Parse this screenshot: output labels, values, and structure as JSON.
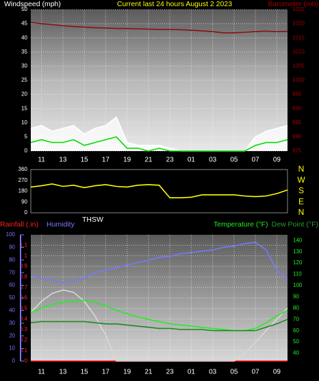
{
  "chart_data": [
    {
      "type": "line",
      "title": "Current last 24 hours August 2 2023",
      "ylabel": "Windspeed (mph)",
      "y2label": "Barometer (mb)",
      "xlim": [
        0,
        24
      ],
      "xticks": [
        {
          "value": 1,
          "label": "11"
        },
        {
          "value": 3,
          "label": "13"
        },
        {
          "value": 5,
          "label": "15"
        },
        {
          "value": 7,
          "label": "17"
        },
        {
          "value": 9,
          "label": "19"
        },
        {
          "value": 11,
          "label": "21"
        },
        {
          "value": 13,
          "label": "23"
        },
        {
          "value": 15,
          "label": "01"
        },
        {
          "value": 17,
          "label": "03"
        },
        {
          "value": 19,
          "label": "05"
        },
        {
          "value": 21,
          "label": "07"
        },
        {
          "value": 23,
          "label": "09"
        }
      ],
      "ylim": [
        0,
        50
      ],
      "yticks": [
        0,
        5,
        10,
        15,
        20,
        25,
        30,
        35,
        40,
        45,
        50
      ],
      "y2lim": [
        975,
        1025
      ],
      "y2ticks": [
        975,
        980,
        985,
        990,
        995,
        1000,
        1005,
        1010,
        1015,
        1020,
        1025
      ],
      "grid": true,
      "x": [
        0,
        1,
        2,
        3,
        4,
        5,
        6,
        7,
        8,
        9,
        10,
        11,
        12,
        13,
        14,
        15,
        16,
        17,
        18,
        19,
        20,
        21,
        22,
        23,
        24
      ],
      "series": [
        {
          "color": "#ffffff",
          "fill": true,
          "values": [
            8,
            9,
            7,
            8,
            9,
            6,
            8,
            9,
            12,
            3,
            2,
            2,
            2,
            1,
            0,
            0,
            0,
            0,
            0,
            0,
            0,
            5,
            7,
            8,
            9
          ]
        },
        {
          "color": "#00dd00",
          "values": [
            3,
            4,
            3,
            3,
            4,
            2,
            3,
            4,
            5,
            1,
            1,
            0,
            1,
            0,
            0,
            0,
            0,
            0,
            0,
            0,
            0,
            2,
            3,
            3,
            4
          ]
        },
        {
          "color": "#8b1010",
          "axis": "y2",
          "values": [
            1020.5,
            1020,
            1019.7,
            1019.3,
            1019,
            1018.8,
            1018.6,
            1018.5,
            1018.3,
            1018.3,
            1018.2,
            1018.1,
            1018,
            1018,
            1017.9,
            1017.7,
            1017.5,
            1017.2,
            1016.8,
            1016.8,
            1017,
            1017.2,
            1017.4,
            1017.2,
            1017.3
          ]
        }
      ]
    },
    {
      "type": "line",
      "xlim": [
        0,
        24
      ],
      "ylim": [
        0,
        360
      ],
      "yticks": [
        0,
        90,
        180,
        270,
        360
      ],
      "y2lim": [
        0,
        360
      ],
      "y2ticks": [
        {
          "value": 360,
          "label": "N"
        },
        {
          "value": 270,
          "label": "W"
        },
        {
          "value": 180,
          "label": "S"
        },
        {
          "value": 90,
          "label": "E"
        },
        {
          "value": 0,
          "label": "N"
        }
      ],
      "x": [
        0,
        1,
        2,
        3,
        4,
        5,
        6,
        7,
        8,
        9,
        10,
        11,
        12,
        13,
        14,
        15,
        16,
        17,
        18,
        19,
        20,
        21,
        22,
        23,
        24
      ],
      "series": [
        {
          "color": "#ffff00",
          "values": [
            215,
            225,
            240,
            220,
            230,
            210,
            225,
            235,
            220,
            215,
            230,
            235,
            230,
            125,
            125,
            130,
            150,
            150,
            150,
            150,
            140,
            135,
            140,
            160,
            190
          ]
        }
      ]
    },
    {
      "type": "line",
      "xlim": [
        0,
        24
      ],
      "xticks": [
        {
          "value": 1,
          "label": "11"
        },
        {
          "value": 3,
          "label": "13"
        },
        {
          "value": 5,
          "label": "15"
        },
        {
          "value": 7,
          "label": "17"
        },
        {
          "value": 9,
          "label": "19"
        },
        {
          "value": 11,
          "label": "21"
        },
        {
          "value": 13,
          "label": "23"
        },
        {
          "value": 15,
          "label": "01"
        },
        {
          "value": 17,
          "label": "03"
        },
        {
          "value": 19,
          "label": "05"
        },
        {
          "value": 21,
          "label": "07"
        },
        {
          "value": 23,
          "label": "09"
        }
      ],
      "ylim": [
        0,
        1.2
      ],
      "yticks": [
        0,
        0.1,
        0.2,
        0.3,
        0.4,
        0.5,
        0.6,
        0.7,
        0.8,
        0.9,
        1,
        1.1
      ],
      "y2lim": [
        33,
        145
      ],
      "y2ticks": [
        40,
        50,
        60,
        70,
        80,
        90,
        100,
        110,
        120,
        130,
        140
      ],
      "y3lim": [
        0,
        100
      ],
      "y3ticks": [
        0,
        10,
        20,
        30,
        40,
        50,
        60,
        70,
        80,
        90,
        100
      ],
      "grid": true,
      "x": [
        0,
        1,
        2,
        3,
        4,
        5,
        6,
        7,
        8,
        9,
        10,
        11,
        12,
        13,
        14,
        15,
        16,
        17,
        18,
        19,
        20,
        21,
        22,
        23,
        24
      ],
      "series": [
        {
          "name": "Rainfall (.in)",
          "color": "#ff0000",
          "values": [
            0,
            0,
            0,
            0,
            0,
            0,
            0,
            0,
            0,
            0,
            0,
            0,
            0,
            0,
            0,
            0,
            0,
            0,
            0,
            0,
            0,
            0,
            0,
            0,
            0
          ]
        },
        {
          "name": "Humidity",
          "color": "#7878ff",
          "axis": "y3",
          "values": [
            68,
            66,
            64,
            62,
            63,
            66,
            70,
            72,
            74,
            76,
            78,
            80,
            82,
            83,
            85,
            86,
            87,
            88,
            90,
            91,
            93,
            94,
            88,
            72,
            65
          ]
        },
        {
          "name": "THSW",
          "color": "#d8d8d8",
          "axis": "y2",
          "values": [
            76,
            86,
            93,
            96,
            94,
            86,
            73,
            56,
            33,
            33,
            33,
            33,
            33,
            33,
            33,
            33,
            33,
            33,
            33,
            33,
            40,
            50,
            60,
            70,
            80
          ]
        },
        {
          "name": "Temperature (°F)",
          "color": "#22ee22",
          "axis": "y2",
          "values": [
            76,
            80,
            83,
            85,
            86,
            87,
            85,
            82,
            78,
            75,
            72,
            70,
            68,
            66,
            65,
            64,
            63,
            62,
            61,
            60,
            60,
            62,
            67,
            73,
            78
          ]
        },
        {
          "name": "Dew Point (°F)",
          "color": "#1a8a1a",
          "axis": "y2",
          "values": [
            67,
            68,
            68,
            68,
            68,
            68,
            67,
            66,
            66,
            65,
            64,
            63,
            62,
            62,
            61,
            61,
            61,
            60,
            60,
            60,
            60,
            60,
            63,
            66,
            70
          ]
        }
      ]
    }
  ]
}
